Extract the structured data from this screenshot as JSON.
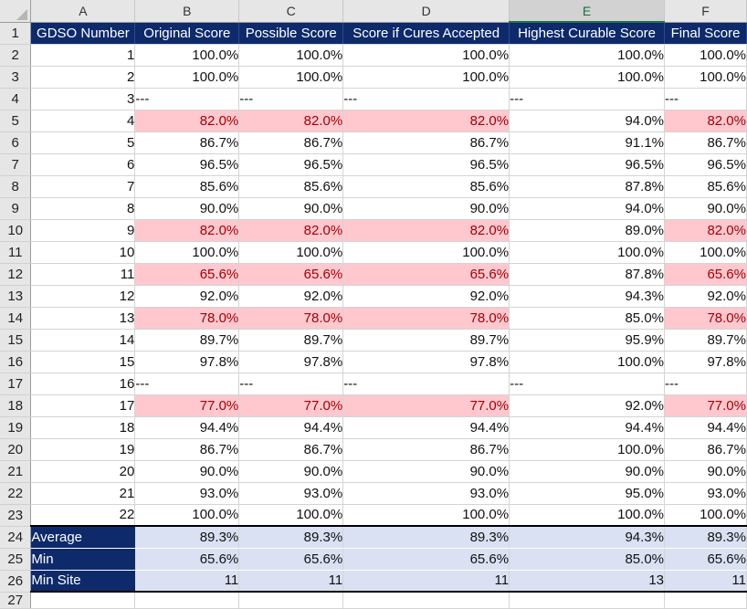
{
  "columns": [
    "A",
    "B",
    "C",
    "D",
    "E",
    "F"
  ],
  "selected_column": "E",
  "headers": [
    "GDSO Number",
    "Original Score",
    "Possible Score",
    "Score if Cures Accepted",
    "Highest Curable Score",
    "Final Score"
  ],
  "rows": [
    {
      "n": "2",
      "a": "1",
      "v": [
        "100.0%",
        "100.0%",
        "100.0%",
        "100.0%",
        "100.0%"
      ],
      "hl": false
    },
    {
      "n": "3",
      "a": "2",
      "v": [
        "100.0%",
        "100.0%",
        "100.0%",
        "100.0%",
        "100.0%"
      ],
      "hl": false
    },
    {
      "n": "4",
      "a": "3",
      "v": [
        "---",
        "---",
        "---",
        "---",
        "---"
      ],
      "hl": false,
      "dash": true
    },
    {
      "n": "5",
      "a": "4",
      "v": [
        "82.0%",
        "82.0%",
        "82.0%",
        "94.0%",
        "82.0%"
      ],
      "hl": true
    },
    {
      "n": "6",
      "a": "5",
      "v": [
        "86.7%",
        "86.7%",
        "86.7%",
        "91.1%",
        "86.7%"
      ],
      "hl": false
    },
    {
      "n": "7",
      "a": "6",
      "v": [
        "96.5%",
        "96.5%",
        "96.5%",
        "96.5%",
        "96.5%"
      ],
      "hl": false
    },
    {
      "n": "8",
      "a": "7",
      "v": [
        "85.6%",
        "85.6%",
        "85.6%",
        "87.8%",
        "85.6%"
      ],
      "hl": false
    },
    {
      "n": "9",
      "a": "8",
      "v": [
        "90.0%",
        "90.0%",
        "90.0%",
        "94.0%",
        "90.0%"
      ],
      "hl": false
    },
    {
      "n": "10",
      "a": "9",
      "v": [
        "82.0%",
        "82.0%",
        "82.0%",
        "89.0%",
        "82.0%"
      ],
      "hl": true
    },
    {
      "n": "11",
      "a": "10",
      "v": [
        "100.0%",
        "100.0%",
        "100.0%",
        "100.0%",
        "100.0%"
      ],
      "hl": false
    },
    {
      "n": "12",
      "a": "11",
      "v": [
        "65.6%",
        "65.6%",
        "65.6%",
        "87.8%",
        "65.6%"
      ],
      "hl": true
    },
    {
      "n": "13",
      "a": "12",
      "v": [
        "92.0%",
        "92.0%",
        "92.0%",
        "94.3%",
        "92.0%"
      ],
      "hl": false
    },
    {
      "n": "14",
      "a": "13",
      "v": [
        "78.0%",
        "78.0%",
        "78.0%",
        "85.0%",
        "78.0%"
      ],
      "hl": true
    },
    {
      "n": "15",
      "a": "14",
      "v": [
        "89.7%",
        "89.7%",
        "89.7%",
        "95.9%",
        "89.7%"
      ],
      "hl": false
    },
    {
      "n": "16",
      "a": "15",
      "v": [
        "97.8%",
        "97.8%",
        "97.8%",
        "100.0%",
        "97.8%"
      ],
      "hl": false
    },
    {
      "n": "17",
      "a": "16",
      "v": [
        "---",
        "---",
        "---",
        "---",
        "---"
      ],
      "hl": false,
      "dash": true
    },
    {
      "n": "18",
      "a": "17",
      "v": [
        "77.0%",
        "77.0%",
        "77.0%",
        "92.0%",
        "77.0%"
      ],
      "hl": true
    },
    {
      "n": "19",
      "a": "18",
      "v": [
        "94.4%",
        "94.4%",
        "94.4%",
        "94.4%",
        "94.4%"
      ],
      "hl": false
    },
    {
      "n": "20",
      "a": "19",
      "v": [
        "86.7%",
        "86.7%",
        "86.7%",
        "100.0%",
        "86.7%"
      ],
      "hl": false
    },
    {
      "n": "21",
      "a": "20",
      "v": [
        "90.0%",
        "90.0%",
        "90.0%",
        "90.0%",
        "90.0%"
      ],
      "hl": false
    },
    {
      "n": "22",
      "a": "21",
      "v": [
        "93.0%",
        "93.0%",
        "93.0%",
        "95.0%",
        "93.0%"
      ],
      "hl": false
    },
    {
      "n": "23",
      "a": "22",
      "v": [
        "100.0%",
        "100.0%",
        "100.0%",
        "100.0%",
        "100.0%"
      ],
      "hl": false
    }
  ],
  "summary": [
    {
      "n": "24",
      "label": "Average",
      "v": [
        "89.3%",
        "89.3%",
        "89.3%",
        "94.3%",
        "89.3%"
      ]
    },
    {
      "n": "25",
      "label": "Min",
      "v": [
        "65.6%",
        "65.6%",
        "65.6%",
        "85.0%",
        "65.6%"
      ]
    },
    {
      "n": "26",
      "label": "Min Site",
      "v": [
        "11",
        "11",
        "11",
        "13",
        "11"
      ]
    }
  ],
  "tail_row": "27",
  "header_row_num": "1",
  "colors": {
    "header_bg": "#0e2a6b",
    "highlight_bg": "#ffc7ce",
    "highlight_text": "#9c0006",
    "summary_bg": "#d9e1f2"
  }
}
